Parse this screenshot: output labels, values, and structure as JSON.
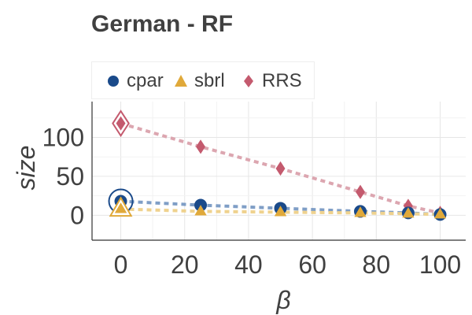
{
  "chart_data": {
    "type": "line",
    "title": "German - RF",
    "xlabel": "β",
    "ylabel": "size",
    "xlim": [
      -9,
      108
    ],
    "ylim": [
      -32,
      146
    ],
    "xticks": [
      0,
      20,
      40,
      60,
      80,
      100
    ],
    "yticks": [
      0,
      50,
      100
    ],
    "grid": true,
    "legend_position": "top",
    "series": [
      {
        "name": "cpar",
        "marker": "circle",
        "color": "#1a4a8a",
        "line_color": "#7f9ec6",
        "x": [
          0,
          25,
          50,
          75,
          90,
          100
        ],
        "y": [
          18,
          13,
          9,
          5,
          3,
          1
        ],
        "highlight_first": true
      },
      {
        "name": "sbrl",
        "marker": "triangle",
        "color": "#e0a93a",
        "line_color": "#efd28e",
        "x": [
          0,
          25,
          50,
          75,
          90,
          100
        ],
        "y": [
          8,
          5,
          4,
          3,
          2,
          1
        ],
        "highlight_first": true
      },
      {
        "name": "RRS",
        "marker": "diamond",
        "color": "#c45a6e",
        "line_color": "#dca6b0",
        "x": [
          0,
          25,
          50,
          75,
          90,
          100
        ],
        "y": [
          118,
          88,
          60,
          30,
          12,
          3
        ],
        "highlight_first": true
      }
    ]
  }
}
